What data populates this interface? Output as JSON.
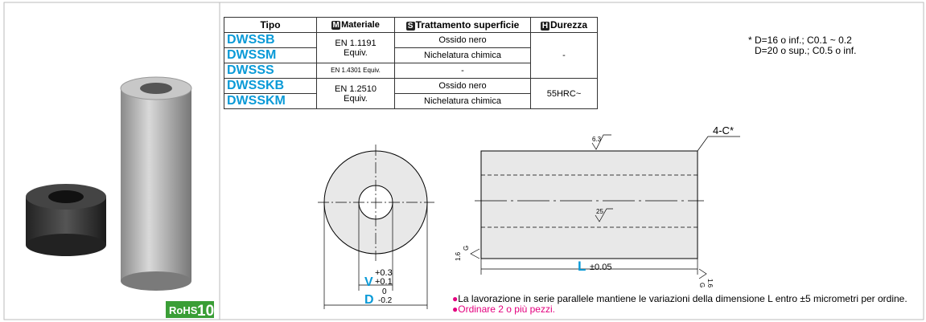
{
  "badge": {
    "text": "RoHS",
    "number": "10"
  },
  "table": {
    "headers": [
      {
        "label": "Tipo"
      },
      {
        "icon": "M",
        "label": "Materiale"
      },
      {
        "icon": "S",
        "label": "Trattamento superficie"
      },
      {
        "icon": "H",
        "label": "Durezza"
      }
    ],
    "rows": [
      {
        "tipo": "DWSSB",
        "materiale": "EN 1.1191 Equiv.",
        "trattamento": "Ossido nero",
        "durezza": "-"
      },
      {
        "tipo": "DWSSM",
        "trattamento": "Nichelatura chimica"
      },
      {
        "tipo": "DWSSS",
        "materiale": "EN 1.4301 Equiv.",
        "trattamento": "-"
      },
      {
        "tipo": "DWSSKB",
        "materiale": "EN 1.2510 Equiv.",
        "trattamento": "Ossido nero",
        "durezza": "55HRC~"
      },
      {
        "tipo": "DWSSKM",
        "trattamento": "Nichelatura chimica"
      }
    ]
  },
  "chamfer_note": [
    "* D=16 o inf.;  C0.1 ~ 0.2",
    "D=20 o sup.; C0.5 o inf."
  ],
  "drawing": {
    "roughness_top": "6.3",
    "chamfer": "4-C*",
    "roughness_bore": "25",
    "roughness_end": "1.6",
    "end_mark": "G",
    "length": {
      "label": "L",
      "tolerance": "±0.05"
    },
    "inner": {
      "label": "V",
      "upper": "+0.3",
      "lower": "+0.1"
    },
    "outer": {
      "label": "D",
      "upper": "0",
      "lower": "-0.2"
    }
  },
  "notes": [
    "La lavorazione in serie parallele mantiene le variazioni della dimensione L entro ±5 micrometri per ordine.",
    "Ordinare 2 o più pezzi."
  ]
}
